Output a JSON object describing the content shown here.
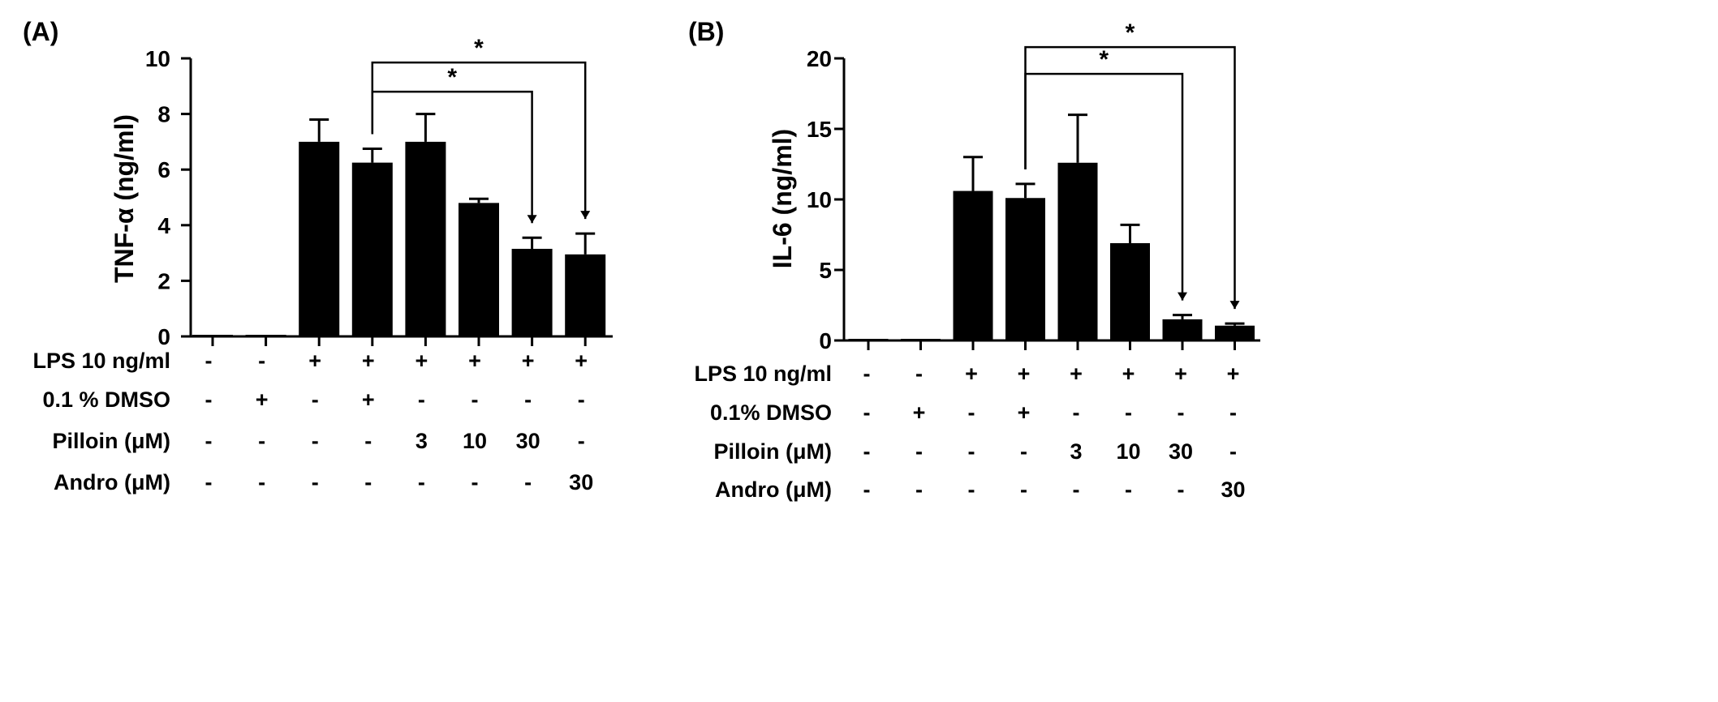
{
  "chart_data": [
    {
      "type": "bar",
      "panel_label": "(A)",
      "ylabel": "TNF-α (ng/ml)",
      "ylim": [
        0,
        10
      ],
      "yticks": [
        "0",
        "2",
        "4",
        "6",
        "8",
        "10"
      ],
      "values": [
        0.05,
        0.05,
        7.0,
        6.25,
        7.0,
        4.8,
        3.15,
        2.95
      ],
      "errors": [
        0,
        0,
        0.8,
        0.5,
        1.0,
        0.15,
        0.4,
        0.75
      ],
      "conditions": [
        {
          "label": "LPS 10 ng/ml",
          "values": [
            "-",
            "-",
            "+",
            "+",
            "+",
            "+",
            "+",
            "+"
          ]
        },
        {
          "label": "0.1 % DMSO",
          "values": [
            "-",
            "+",
            "-",
            "+",
            "-",
            "-",
            "-",
            "-"
          ]
        },
        {
          "label": "Pilloin (μM)",
          "values": [
            "-",
            "-",
            "-",
            "-",
            "3",
            "10",
            "30",
            "-"
          ]
        },
        {
          "label": "Andro (μM)",
          "values": [
            "-",
            "-",
            "-",
            "-",
            "-",
            "-",
            "-",
            "30"
          ]
        }
      ],
      "significance": [
        {
          "from": 3,
          "to": 6,
          "level": 8.8,
          "label": "*"
        },
        {
          "from": 3,
          "to": 7,
          "level": 9.85,
          "label": "*"
        }
      ]
    },
    {
      "type": "bar",
      "panel_label": "(B)",
      "ylabel": "IL-6 (ng/ml)",
      "ylim": [
        0,
        20
      ],
      "yticks": [
        "0",
        "5",
        "10",
        "15",
        "20"
      ],
      "values": [
        0.05,
        0.05,
        10.6,
        10.1,
        12.6,
        6.9,
        1.5,
        1.05
      ],
      "errors": [
        0,
        0,
        2.4,
        1.0,
        3.4,
        1.3,
        0.3,
        0.15
      ],
      "conditions": [
        {
          "label": "LPS 10 ng/ml",
          "values": [
            "-",
            "-",
            "+",
            "+",
            "+",
            "+",
            "+",
            "+"
          ]
        },
        {
          "label": "0.1% DMSO",
          "values": [
            "-",
            "+",
            "-",
            "+",
            "-",
            "-",
            "-",
            "-"
          ]
        },
        {
          "label": "Pilloin (μM)",
          "values": [
            "-",
            "-",
            "-",
            "-",
            "3",
            "10",
            "30",
            "-"
          ]
        },
        {
          "label": "Andro (μM)",
          "values": [
            "-",
            "-",
            "-",
            "-",
            "-",
            "-",
            "-",
            "30"
          ]
        }
      ],
      "significance": [
        {
          "from": 3,
          "to": 6,
          "level": 18.9,
          "label": "*"
        },
        {
          "from": 3,
          "to": 7,
          "level": 20.8,
          "label": "*"
        }
      ]
    }
  ]
}
